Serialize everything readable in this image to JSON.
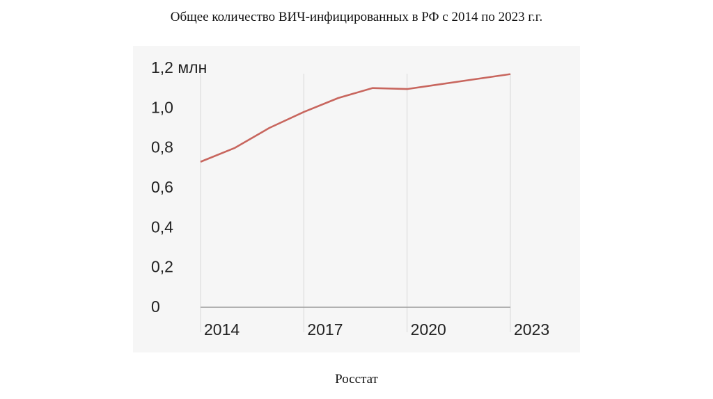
{
  "title": "Общее количество ВИЧ-инфицированных в РФ с  2014 по 2023 г.г.",
  "source": "Росстат",
  "chart_data": {
    "type": "line",
    "x": [
      2014,
      2015,
      2016,
      2017,
      2018,
      2019,
      2020,
      2021,
      2022,
      2023
    ],
    "series": [
      {
        "values": [
          0.73,
          0.8,
          0.9,
          0.98,
          1.05,
          1.1,
          1.095,
          1.12,
          1.145,
          1.17
        ],
        "color": "#c8665e"
      }
    ],
    "ylim": [
      0,
      1.2
    ],
    "xlim": [
      2014,
      2023
    ],
    "y_ticks": [
      {
        "value": 0,
        "label": "0"
      },
      {
        "value": 0.2,
        "label": "0,2"
      },
      {
        "value": 0.4,
        "label": "0,4"
      },
      {
        "value": 0.6,
        "label": "0,6"
      },
      {
        "value": 0.8,
        "label": "0,8"
      },
      {
        "value": 1.0,
        "label": "1,0"
      },
      {
        "value": 1.2,
        "label": "1,2 млн"
      }
    ],
    "x_ticks": [
      {
        "value": 2014,
        "label": "2014"
      },
      {
        "value": 2017,
        "label": "2017"
      },
      {
        "value": 2020,
        "label": "2020"
      },
      {
        "value": 2023,
        "label": "2023"
      }
    ],
    "grid": "vertical",
    "background": "#f6f6f6"
  }
}
